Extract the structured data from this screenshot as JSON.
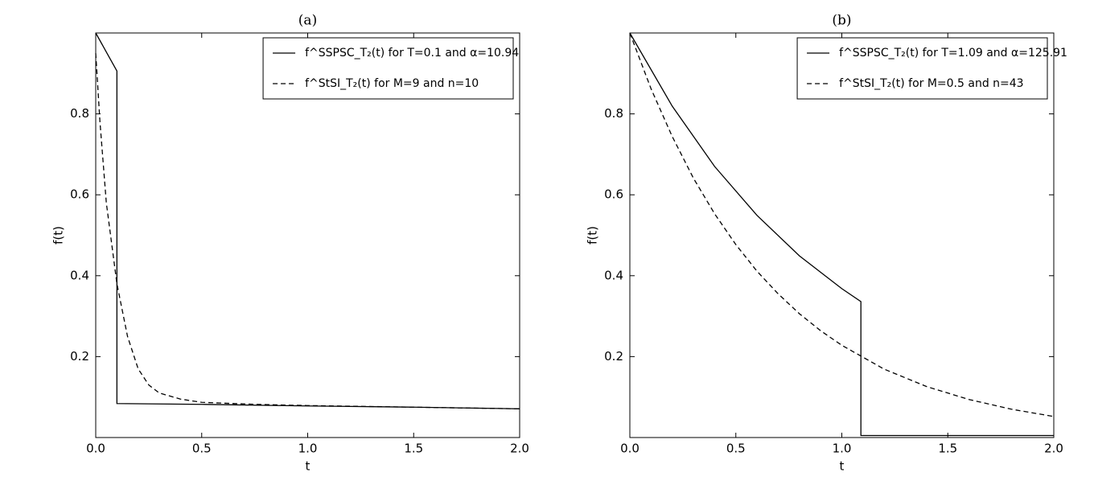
{
  "chart_data": [
    {
      "type": "line",
      "title": "(a)",
      "xlabel": "t",
      "ylabel": "f(t)",
      "xlim": [
        0,
        2
      ],
      "ylim": [
        0,
        1
      ],
      "xticks": [
        {
          "value": 0,
          "label": "0.0"
        },
        {
          "value": 0.5,
          "label": "0.5"
        },
        {
          "value": 1,
          "label": "1.0"
        },
        {
          "value": 1.5,
          "label": "1.5"
        },
        {
          "value": 2,
          "label": "2.0"
        }
      ],
      "yticks": [
        0.2,
        0.4,
        0.6,
        0.8
      ],
      "legend": "upper right",
      "series": [
        {
          "name": "f^SSPSC_T₂(t) for T=0.1 and α=10.94",
          "color": "#000000",
          "dash": "solid",
          "x": [
            0,
            0.05,
            0.1,
            0.1,
            0.5,
            1.0,
            1.5,
            2.0
          ],
          "values": [
            1.0,
            0.953,
            0.906,
            0.084,
            0.082,
            0.078,
            0.075,
            0.071
          ]
        },
        {
          "name": "f^StSI_T₂(t) for M=9 and n=10",
          "color": "#000000",
          "dash": "dashed",
          "x": [
            0,
            0.02,
            0.05,
            0.1,
            0.15,
            0.2,
            0.25,
            0.3,
            0.4,
            0.5,
            0.75,
            1.0,
            1.5,
            2.0
          ],
          "values": [
            0.95,
            0.78,
            0.58,
            0.38,
            0.25,
            0.17,
            0.13,
            0.11,
            0.095,
            0.087,
            0.082,
            0.079,
            0.075,
            0.071
          ]
        }
      ]
    },
    {
      "type": "line",
      "title": "(b)",
      "xlabel": "t",
      "ylabel": "f(t)",
      "xlim": [
        0,
        2
      ],
      "ylim": [
        0,
        1
      ],
      "xticks": [
        {
          "value": 0,
          "label": "0.0"
        },
        {
          "value": 0.5,
          "label": "0.5"
        },
        {
          "value": 1,
          "label": "1.0"
        },
        {
          "value": 1.5,
          "label": "1.5"
        },
        {
          "value": 2,
          "label": "2.0"
        }
      ],
      "yticks": [
        0.2,
        0.4,
        0.6,
        0.8
      ],
      "legend": "upper right",
      "series": [
        {
          "name": "f^SSPSC_T₂(t) for T=1.09 and α=125.91",
          "color": "#000000",
          "dash": "solid",
          "x": [
            0,
            0.2,
            0.4,
            0.6,
            0.8,
            1.0,
            1.09,
            1.09,
            2.0
          ],
          "values": [
            1.0,
            0.819,
            0.67,
            0.549,
            0.449,
            0.368,
            0.336,
            0.005,
            0.005
          ]
        },
        {
          "name": "f^StSI_T₂(t) for M=0.5 and n=43",
          "color": "#000000",
          "dash": "dashed",
          "x": [
            0,
            0.1,
            0.2,
            0.3,
            0.4,
            0.5,
            0.6,
            0.7,
            0.8,
            0.9,
            1.0,
            1.2,
            1.4,
            1.6,
            1.8,
            2.0
          ],
          "values": [
            1.0,
            0.862,
            0.744,
            0.641,
            0.553,
            0.477,
            0.411,
            0.355,
            0.306,
            0.264,
            0.228,
            0.169,
            0.126,
            0.094,
            0.07,
            0.052
          ]
        }
      ]
    }
  ]
}
